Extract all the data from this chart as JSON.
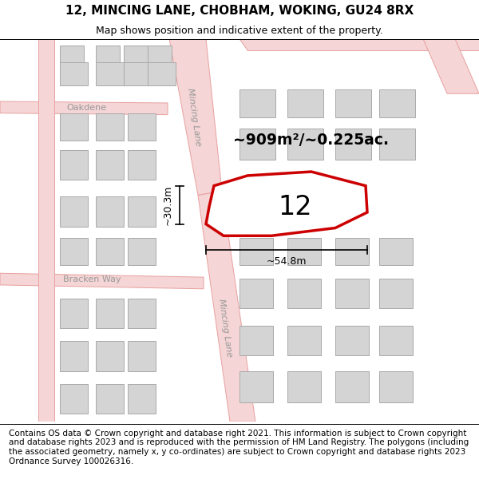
{
  "title": "12, MINCING LANE, CHOBHAM, WOKING, GU24 8RX",
  "subtitle": "Map shows position and indicative extent of the property.",
  "footer": "Contains OS data © Crown copyright and database right 2021. This information is subject to Crown copyright and database rights 2023 and is reproduced with the permission of HM Land Registry. The polygons (including the associated geometry, namely x, y co-ordinates) are subject to Crown copyright and database rights 2023 Ordnance Survey 100026316.",
  "map_bg": "#f2eeee",
  "road_fill": "#f5d5d5",
  "road_edge": "#e8a0a0",
  "bldg_fill": "#d4d4d4",
  "bldg_edge": "#aaaaaa",
  "red": "#cc0000",
  "white": "#ffffff",
  "area_text": "~909m²/~0.225ac.",
  "label_12": "12",
  "dim_width": "~54.8m",
  "dim_height": "~30.3m",
  "street_top": "Mincing Lane",
  "street_bot": "Mincing Lane",
  "street_oakdene": "Oakdene",
  "street_bracken": "Bracken Way",
  "title_fontsize": 11,
  "subtitle_fontsize": 9,
  "footer_fontsize": 7.5
}
